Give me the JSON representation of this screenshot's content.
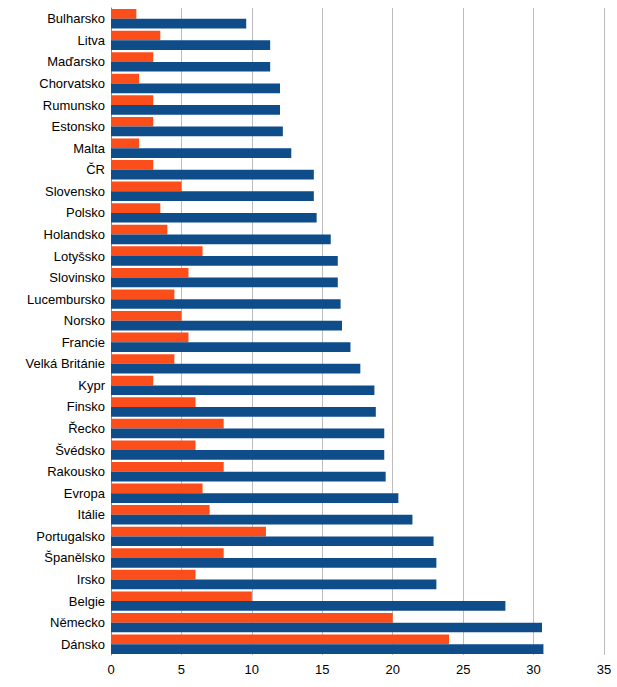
{
  "chart_data": {
    "type": "bar",
    "orientation": "horizontal",
    "grid": true,
    "categories": [
      "Bulharsko",
      "Litva",
      "Maďarsko",
      "Chorvatsko",
      "Rumunsko",
      "Estonsko",
      "Malta",
      "ČR",
      "Slovensko",
      "Polsko",
      "Holandsko",
      "Lotyšsko",
      "Slovinsko",
      "Lucembursko",
      "Norsko",
      "Francie",
      "Velká Británie",
      "Kypr",
      "Finsko",
      "Řecko",
      "Švédsko",
      "Rakousko",
      "Evropa",
      "Itálie",
      "Portugalsko",
      "Španělsko",
      "Irsko",
      "Belgie",
      "Německo",
      "Dánsko"
    ],
    "series": [
      {
        "color": "#fc4e1a",
        "values": [
          1.8,
          3.5,
          3.0,
          2.0,
          3.0,
          3.0,
          2.0,
          3.0,
          5.0,
          3.5,
          4.0,
          6.5,
          5.5,
          4.5,
          5.0,
          5.5,
          4.5,
          3.0,
          6.0,
          8.0,
          6.0,
          8.0,
          6.5,
          7.0,
          11.0,
          8.0,
          6.0,
          10.0,
          20.0,
          24.0
        ]
      },
      {
        "color": "#0f4c8a",
        "values": [
          9.6,
          11.3,
          11.3,
          12.0,
          12.0,
          12.2,
          12.8,
          14.4,
          14.4,
          14.6,
          15.6,
          16.1,
          16.1,
          16.3,
          16.4,
          17.0,
          17.7,
          18.7,
          18.8,
          19.4,
          19.4,
          19.5,
          20.4,
          21.4,
          22.9,
          23.1,
          23.1,
          28.0,
          30.6,
          30.7
        ]
      }
    ],
    "xlim": [
      0,
      35
    ],
    "xticks": [
      0,
      5,
      10,
      15,
      20,
      25,
      30,
      35
    ]
  }
}
